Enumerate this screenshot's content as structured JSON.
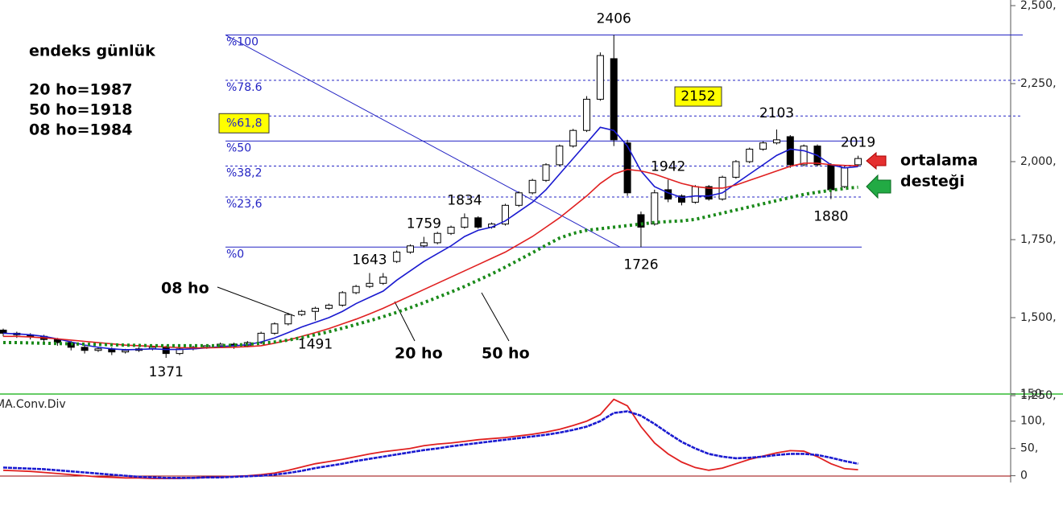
{
  "chart_data": [
    {
      "type": "candlestick",
      "title": "endeks günlük",
      "notes": [
        "20 ho=1987",
        "50 ho=1918",
        "08 ho=1984"
      ],
      "candles": {
        "open": [
          1460,
          1450,
          1445,
          1440,
          1430,
          1420,
          1405,
          1395,
          1400,
          1390,
          1395,
          1400,
          1405,
          1385,
          1400,
          1405,
          1410,
          1415,
          1410,
          1420,
          1450,
          1480,
          1510,
          1520,
          1530,
          1540,
          1580,
          1600,
          1610,
          1680,
          1710,
          1730,
          1740,
          1770,
          1790,
          1820,
          1790,
          1800,
          1860,
          1900,
          1940,
          1990,
          2050,
          2100,
          2200,
          2330,
          2060,
          1830,
          1800,
          1910,
          1890,
          1870,
          1920,
          1880,
          1950,
          2000,
          2040,
          2060,
          2080,
          1990,
          2050,
          1990,
          1920,
          1990
        ],
        "high": [
          1465,
          1455,
          1450,
          1445,
          1435,
          1425,
          1410,
          1405,
          1405,
          1400,
          1405,
          1410,
          1410,
          1405,
          1410,
          1415,
          1420,
          1420,
          1425,
          1455,
          1485,
          1515,
          1525,
          1535,
          1545,
          1585,
          1605,
          1643,
          1643,
          1715,
          1735,
          1759,
          1775,
          1795,
          1834,
          1825,
          1805,
          1865,
          1905,
          1945,
          1995,
          2055,
          2105,
          2210,
          2350,
          2406,
          2070,
          1840,
          1910,
          1942,
          1895,
          1925,
          1925,
          1955,
          2005,
          2045,
          2065,
          2103,
          2085,
          2055,
          2055,
          1995,
          1985,
          2019
        ],
        "low": [
          1440,
          1435,
          1430,
          1420,
          1410,
          1395,
          1385,
          1390,
          1380,
          1385,
          1390,
          1395,
          1371,
          1380,
          1395,
          1400,
          1405,
          1400,
          1405,
          1415,
          1445,
          1475,
          1505,
          1491,
          1525,
          1535,
          1575,
          1595,
          1605,
          1675,
          1705,
          1725,
          1735,
          1765,
          1785,
          1785,
          1785,
          1795,
          1855,
          1895,
          1935,
          1985,
          2045,
          2095,
          2195,
          2050,
          1890,
          1726,
          1795,
          1870,
          1860,
          1865,
          1875,
          1875,
          1945,
          1995,
          2035,
          2055,
          1980,
          1985,
          1985,
          1880,
          1915,
          1985
        ],
        "close": [
          1450,
          1445,
          1440,
          1430,
          1420,
          1405,
          1395,
          1400,
          1390,
          1395,
          1400,
          1405,
          1385,
          1400,
          1405,
          1410,
          1415,
          1410,
          1420,
          1450,
          1480,
          1510,
          1520,
          1530,
          1540,
          1580,
          1600,
          1610,
          1630,
          1710,
          1730,
          1740,
          1770,
          1790,
          1820,
          1790,
          1800,
          1860,
          1900,
          1940,
          1990,
          2050,
          2100,
          2200,
          2340,
          2070,
          1900,
          1790,
          1900,
          1880,
          1870,
          1920,
          1880,
          1950,
          2000,
          2040,
          2060,
          2070,
          1990,
          2050,
          1990,
          1910,
          1980,
          2010
        ]
      },
      "series": [
        {
          "name": "08 ho",
          "color": "#1a1ad0",
          "values": [
            1450,
            1448,
            1445,
            1440,
            1432,
            1422,
            1412,
            1405,
            1400,
            1397,
            1398,
            1400,
            1398,
            1398,
            1400,
            1403,
            1407,
            1410,
            1413,
            1422,
            1435,
            1452,
            1470,
            1485,
            1500,
            1520,
            1545,
            1565,
            1585,
            1620,
            1650,
            1680,
            1705,
            1730,
            1760,
            1780,
            1790,
            1810,
            1840,
            1870,
            1910,
            1960,
            2010,
            2060,
            2110,
            2100,
            2050,
            1970,
            1920,
            1900,
            1885,
            1890,
            1890,
            1900,
            1930,
            1960,
            1990,
            2020,
            2040,
            2035,
            2020,
            1990,
            1980,
            1984
          ]
        },
        {
          "name": "20 ho",
          "color": "#e02020",
          "values": [
            1440,
            1440,
            1438,
            1435,
            1432,
            1428,
            1424,
            1420,
            1416,
            1412,
            1410,
            1408,
            1406,
            1404,
            1403,
            1403,
            1404,
            1405,
            1407,
            1410,
            1418,
            1428,
            1440,
            1452,
            1465,
            1480,
            1495,
            1512,
            1530,
            1550,
            1570,
            1590,
            1610,
            1630,
            1650,
            1670,
            1690,
            1710,
            1735,
            1760,
            1790,
            1820,
            1855,
            1890,
            1930,
            1960,
            1975,
            1970,
            1960,
            1945,
            1930,
            1920,
            1915,
            1915,
            1925,
            1940,
            1955,
            1970,
            1985,
            1995,
            1995,
            1990,
            1988,
            1987
          ]
        },
        {
          "name": "50 ho",
          "color": "#1a8a1a",
          "values": [
            1420,
            1420,
            1419,
            1418,
            1417,
            1416,
            1415,
            1414,
            1413,
            1412,
            1411,
            1410,
            1410,
            1410,
            1410,
            1410,
            1410,
            1412,
            1414,
            1418,
            1422,
            1428,
            1436,
            1445,
            1455,
            1466,
            1478,
            1490,
            1503,
            1517,
            1532,
            1548,
            1565,
            1582,
            1600,
            1620,
            1640,
            1662,
            1685,
            1708,
            1732,
            1755,
            1770,
            1780,
            1785,
            1790,
            1795,
            1800,
            1805,
            1808,
            1810,
            1815,
            1825,
            1835,
            1845,
            1855,
            1865,
            1875,
            1885,
            1895,
            1902,
            1908,
            1914,
            1918
          ]
        }
      ],
      "fibonacci": {
        "color": "#2424c4",
        "levels": [
          {
            "value": 2406,
            "label": "%100",
            "dashed": false
          },
          {
            "value": 2260.5,
            "label": "%78.6",
            "dashed": true
          },
          {
            "value": 2146.2,
            "label": "%61,8",
            "dashed": true,
            "highlight": true
          },
          {
            "value": 2066,
            "label": "%50",
            "dashed": false
          },
          {
            "value": 1985.8,
            "label": "%38,2",
            "dashed": true
          },
          {
            "value": 1886.5,
            "label": "%23,6",
            "dashed": true
          },
          {
            "value": 1726,
            "label": "%0",
            "dashed": false
          }
        ]
      },
      "target": 2152,
      "support_label": [
        "ortalama",
        "desteği"
      ],
      "ylim": [
        1250,
        2500
      ],
      "yticks": [
        {
          "value": 2500,
          "label": "2,500,"
        },
        {
          "value": 2250,
          "label": "2,250,"
        },
        {
          "value": 2000,
          "label": "2,000,"
        },
        {
          "value": 1750,
          "label": "1,750,"
        },
        {
          "value": 1500,
          "label": "1,500,"
        },
        {
          "value": 1250,
          "label": "1,250,"
        }
      ]
    },
    {
      "type": "line",
      "title": "MA.Conv.Div",
      "series": [
        {
          "color": "#e02020",
          "values": [
            10,
            9,
            8,
            6,
            4,
            2,
            0,
            -2,
            -3,
            -4,
            -4,
            -5,
            -5,
            -5,
            -4,
            -3,
            -2,
            -1,
            0,
            2,
            5,
            10,
            16,
            22,
            26,
            30,
            35,
            40,
            44,
            47,
            50,
            55,
            58,
            60,
            63,
            66,
            68,
            70,
            73,
            76,
            80,
            85,
            92,
            100,
            112,
            140,
            128,
            90,
            60,
            40,
            25,
            15,
            10,
            14,
            22,
            30,
            36,
            42,
            46,
            45,
            35,
            22,
            13,
            11
          ]
        },
        {
          "color": "#1a1ad0",
          "values": [
            15,
            14,
            13,
            12,
            10,
            8,
            6,
            4,
            2,
            0,
            -2,
            -3,
            -4,
            -4,
            -4,
            -3,
            -3,
            -2,
            -1,
            0,
            2,
            5,
            9,
            14,
            18,
            22,
            27,
            31,
            35,
            39,
            43,
            47,
            50,
            54,
            57,
            60,
            63,
            66,
            69,
            72,
            75,
            79,
            84,
            90,
            100,
            115,
            118,
            110,
            95,
            78,
            62,
            50,
            40,
            35,
            32,
            33,
            35,
            38,
            40,
            40,
            38,
            33,
            27,
            22
          ]
        }
      ],
      "ylim": [
        -10,
        155
      ],
      "yticks": [
        {
          "value": 150,
          "label": "150,"
        },
        {
          "value": 100,
          "label": "100,"
        },
        {
          "value": 50,
          "label": "50,"
        },
        0
      ]
    }
  ]
}
